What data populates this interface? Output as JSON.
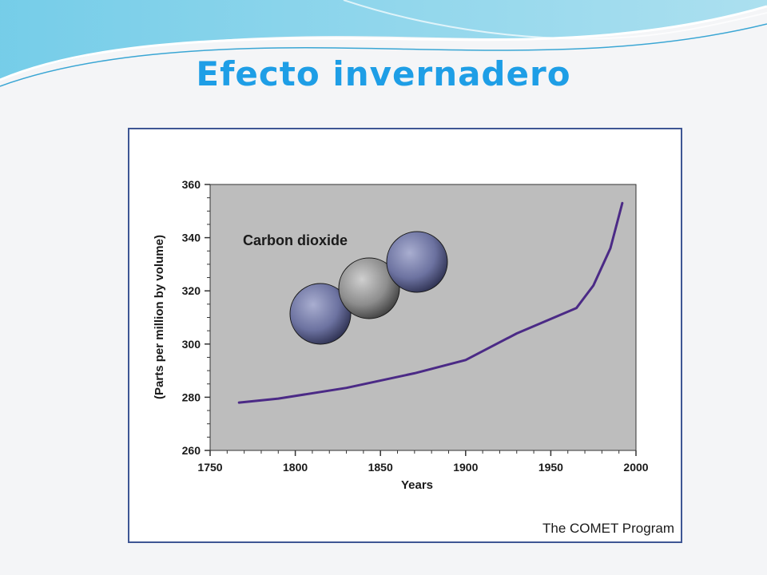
{
  "slide": {
    "title": "Efecto invernadero"
  },
  "credit": "The COMET Program",
  "colors": {
    "title": "#1e9ee6",
    "frame_border": "#3e5694",
    "plot_background": "#bdbdbd",
    "line": "#4b2a86",
    "outer_atom": "#6c72a0",
    "center_atom": "#9a9a9a"
  },
  "chart_data": {
    "type": "line",
    "title": "",
    "xlabel": "Years",
    "ylabel": "(Parts per million by volume)",
    "xlim": [
      1750,
      2000
    ],
    "ylim": [
      260,
      360
    ],
    "xticks": [
      1750,
      1800,
      1850,
      1900,
      1950,
      2000
    ],
    "yticks": [
      260,
      280,
      300,
      320,
      340,
      360
    ],
    "grid": false,
    "annotation": "Carbon dioxide",
    "series": [
      {
        "x": [
          1767,
          1790,
          1830,
          1870,
          1900,
          1930,
          1965,
          1975,
          1985,
          1992
        ],
        "y": [
          278,
          279.5,
          283.5,
          289,
          294,
          304,
          313.5,
          322,
          336,
          353
        ]
      }
    ]
  }
}
